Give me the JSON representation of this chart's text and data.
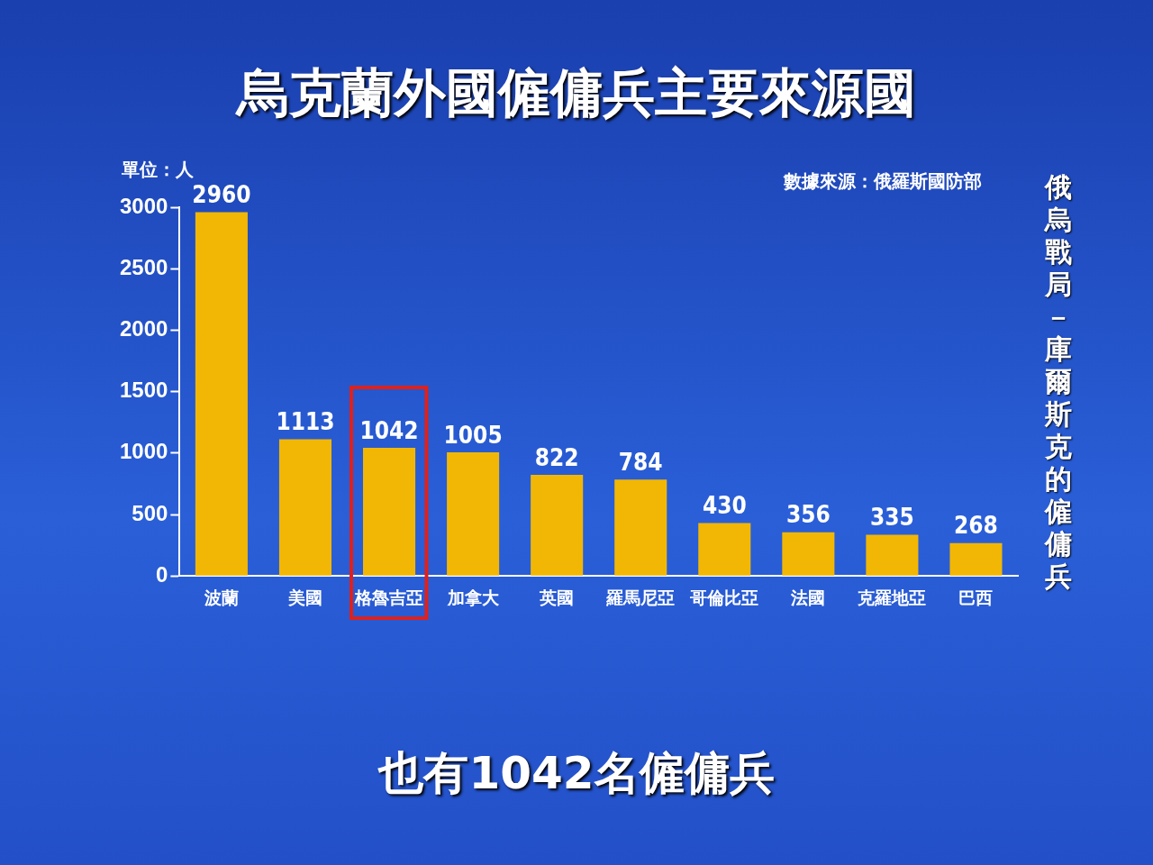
{
  "chart_data": {
    "type": "bar",
    "title": "烏克蘭外國僱傭兵主要來源國",
    "ylabel": "單位：人",
    "categories": [
      "波蘭",
      "美國",
      "格魯吉亞",
      "加拿大",
      "英國",
      "羅馬尼亞",
      "哥倫比亞",
      "法國",
      "克羅地亞",
      "巴西"
    ],
    "values": [
      2960,
      1113,
      1042,
      1005,
      822,
      784,
      430,
      356,
      335,
      268
    ],
    "color": "#f2b705",
    "ylim": [
      0,
      3000
    ],
    "yticks": [
      0,
      500,
      1000,
      1500,
      2000,
      2500,
      3000
    ],
    "grid": false,
    "legend": false,
    "data_labels": true,
    "annotations": [
      "數據來源：俄羅斯國防部",
      "俄烏戰局－庫爾斯克的僱傭兵",
      "也有1042名僱傭兵"
    ]
  }
}
